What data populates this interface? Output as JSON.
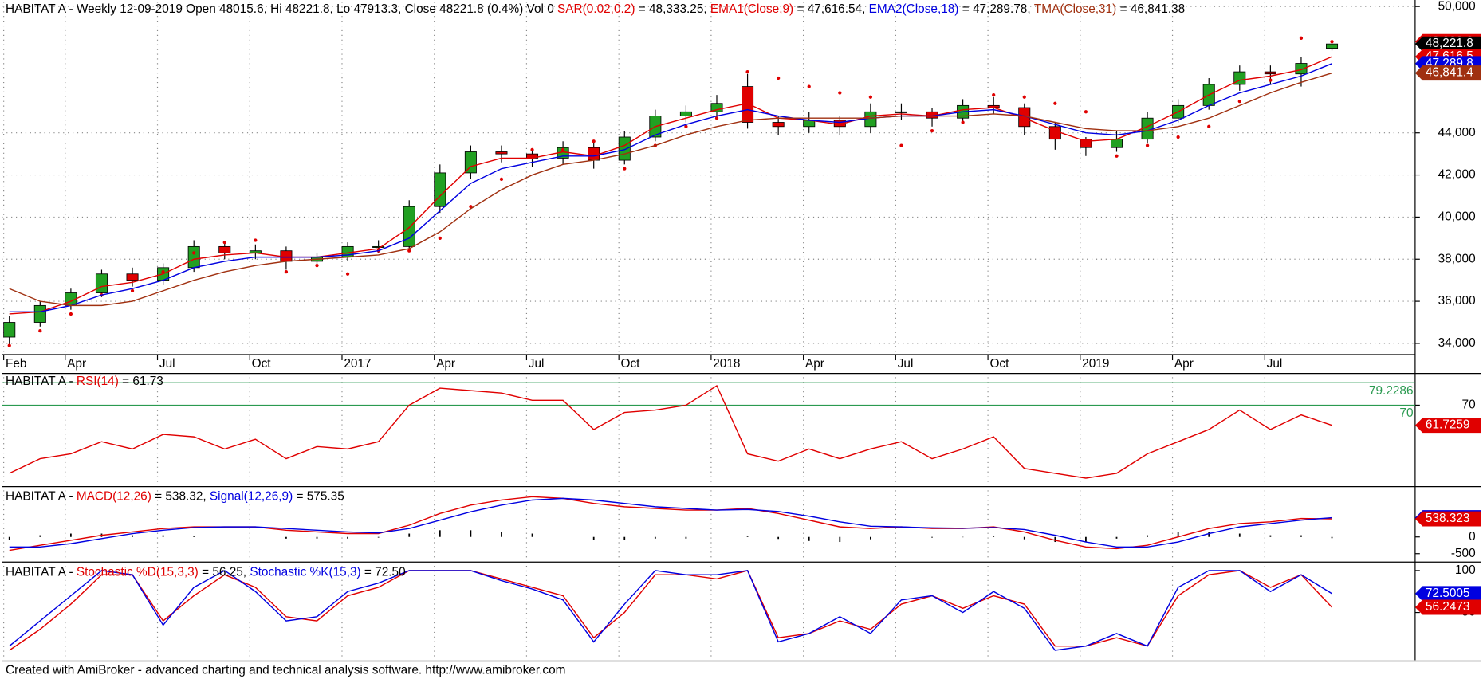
{
  "chart_data": [
    {
      "type": "candlestick",
      "title_parts": [
        {
          "text": "HABITAT A - Weekly 12-09-2019 Open 48015.6, Hi 48221.8, Lo 47913.3, Close 48221.8 (0.4%) Vol 0 ",
          "color": "#000000"
        },
        {
          "text": "SAR(0.02,0.2)",
          "color": "#e00000"
        },
        {
          "text": " = 48,333.25, ",
          "color": "#000000"
        },
        {
          "text": "EMA1(Close,9)",
          "color": "#e00000"
        },
        {
          "text": " = 47,616.54, ",
          "color": "#000000"
        },
        {
          "text": "EMA2(Close,18)",
          "color": "#0000e0"
        },
        {
          "text": " = 47,289.78, ",
          "color": "#000000"
        },
        {
          "text": "TMA(Close,31)",
          "color": "#a03010"
        },
        {
          "text": " = 46,841.38",
          "color": "#000000"
        }
      ],
      "categories": [
        "Feb",
        null,
        "Apr",
        null,
        null,
        "Jul",
        null,
        null,
        "Oct",
        null,
        null,
        "2017",
        null,
        null,
        "Apr",
        null,
        null,
        "Jul",
        null,
        null,
        "Oct",
        null,
        null,
        "2018",
        null,
        null,
        "Apr",
        null,
        null,
        "Jul",
        null,
        null,
        "Oct",
        null,
        null,
        "2019",
        null,
        null,
        "Apr",
        null,
        null,
        "Jul",
        null,
        null
      ],
      "open": [
        34300,
        35000,
        35800,
        36400,
        37300,
        37000,
        37600,
        38600,
        38300,
        38400,
        37900,
        38100,
        38600,
        38600,
        40500,
        42100,
        43100,
        43000,
        42800,
        43300,
        42700,
        43800,
        44800,
        45000,
        46200,
        44500,
        44300,
        44600,
        44300,
        45000,
        45000,
        44700,
        45300,
        45200,
        44300,
        43700,
        43300,
        43700,
        44700,
        45300,
        46300,
        46900,
        46800,
        48015.6
      ],
      "high": [
        35300,
        36000,
        36600,
        37500,
        37600,
        37800,
        38900,
        38800,
        38700,
        38600,
        38300,
        38800,
        38900,
        40800,
        42500,
        43400,
        43400,
        43200,
        43600,
        43500,
        44100,
        45100,
        45300,
        45800,
        46800,
        44800,
        45000,
        44800,
        45400,
        45400,
        45200,
        45600,
        45700,
        45400,
        44500,
        43800,
        44100,
        45000,
        45600,
        46600,
        47200,
        47200,
        47600,
        48221.8
      ],
      "low": [
        33900,
        34800,
        35600,
        36200,
        36700,
        36800,
        37400,
        38000,
        38000,
        37500,
        37700,
        37900,
        38300,
        38400,
        40200,
        41800,
        42600,
        42400,
        42500,
        42300,
        42500,
        43600,
        44500,
        44800,
        44200,
        43900,
        44000,
        43900,
        44000,
        44600,
        44300,
        44500,
        44900,
        43900,
        43200,
        42900,
        43100,
        43500,
        44500,
        45100,
        46000,
        46300,
        46200,
        47913.3
      ],
      "close": [
        35000,
        35800,
        36400,
        37300,
        37000,
        37600,
        38600,
        38300,
        38400,
        37900,
        38100,
        38600,
        38600,
        40500,
        42100,
        43100,
        43000,
        42800,
        43300,
        42700,
        43800,
        44800,
        45000,
        45400,
        44500,
        44300,
        44600,
        44300,
        45000,
        45000,
        44700,
        45300,
        45200,
        44300,
        43700,
        43300,
        43700,
        44700,
        45300,
        46300,
        46900,
        46800,
        47300,
        48221.8
      ],
      "up_color": "#22a022",
      "down_color": "#e00000",
      "series": [
        {
          "style": "dots",
          "color": "#e00000",
          "values": [
            33900,
            34600,
            35400,
            36300,
            36500,
            37400,
            38300,
            38800,
            38900,
            37400,
            37700,
            37300,
            38400,
            38400,
            39000,
            40500,
            41800,
            43200,
            43200,
            43600,
            42300,
            43400,
            44300,
            44700,
            46900,
            46600,
            46200,
            45900,
            45700,
            43400,
            44100,
            44500,
            45800,
            45700,
            45400,
            45000,
            42900,
            43400,
            43800,
            44300,
            45500,
            46500,
            48500,
            48333.25
          ]
        },
        {
          "style": "line",
          "color": "#e00000",
          "values": [
            35400,
            35500,
            36000,
            36700,
            36900,
            37300,
            38000,
            38200,
            38300,
            38100,
            38100,
            38300,
            38500,
            39500,
            41000,
            42400,
            42800,
            42800,
            43100,
            42900,
            43400,
            44300,
            44700,
            45100,
            45400,
            44700,
            44600,
            44400,
            44800,
            44900,
            44800,
            45100,
            45200,
            44700,
            44100,
            43600,
            43700,
            44300,
            45000,
            45800,
            46500,
            46700,
            47000,
            47616.54
          ]
        },
        {
          "style": "line",
          "color": "#0000e0",
          "values": [
            35500,
            35500,
            35800,
            36300,
            36600,
            37000,
            37600,
            37900,
            38100,
            38100,
            38100,
            38200,
            38400,
            39000,
            40300,
            41600,
            42300,
            42600,
            42900,
            42900,
            43200,
            43900,
            44400,
            44800,
            45100,
            44800,
            44600,
            44500,
            44700,
            44800,
            44800,
            45000,
            45100,
            44800,
            44400,
            44000,
            43900,
            44100,
            44600,
            45300,
            45900,
            46300,
            46700,
            47289.78
          ]
        },
        {
          "style": "line",
          "color": "#a03010",
          "values": [
            36600,
            36000,
            35800,
            35800,
            36000,
            36500,
            37000,
            37400,
            37700,
            37900,
            38000,
            38100,
            38200,
            38500,
            39300,
            40400,
            41300,
            42000,
            42500,
            42700,
            43000,
            43400,
            43900,
            44300,
            44600,
            44700,
            44700,
            44700,
            44700,
            44800,
            44800,
            44800,
            44900,
            44800,
            44500,
            44200,
            44100,
            44100,
            44300,
            44700,
            45300,
            45900,
            46400,
            46841.38
          ]
        }
      ],
      "ylim": [
        33560,
        50220
      ],
      "yticks": [
        {
          "value": 34000,
          "label": "34,000"
        },
        {
          "value": 36000,
          "label": "36,000"
        },
        {
          "value": 38000,
          "label": "38,000"
        },
        {
          "value": 40000,
          "label": "40,000"
        },
        {
          "value": 42000,
          "label": "42,000"
        },
        {
          "value": 44000,
          "label": "44,000"
        },
        {
          "value": 50000,
          "label": "50,000"
        }
      ],
      "grid": true,
      "badges": [
        {
          "value": 48333.3,
          "label": "48,333.3",
          "color": "#e00000"
        },
        {
          "value": 48221.8,
          "label": "48,221.8",
          "color": "#000000"
        },
        {
          "value": 47616.5,
          "label": "47,616.5",
          "color": "#e00000"
        },
        {
          "value": 47289.8,
          "label": "47,289.8",
          "color": "#0000e0"
        },
        {
          "value": 46841.4,
          "label": "46,841.4",
          "color": "#a03010"
        }
      ]
    },
    {
      "type": "line",
      "title_parts": [
        {
          "text": "HABITAT A - ",
          "color": "#000000"
        },
        {
          "text": "RSI(14)",
          "color": "#e00000"
        },
        {
          "text": " = 61.73",
          "color": "#000000"
        }
      ],
      "series": [
        {
          "style": "line",
          "color": "#e00000",
          "values": [
            42,
            48,
            50,
            55,
            52,
            58,
            57,
            52,
            56,
            48,
            53,
            52,
            55,
            70,
            77,
            76,
            75,
            72,
            72,
            60,
            67,
            68,
            70,
            78,
            50,
            47,
            52,
            48,
            52,
            55,
            48,
            52,
            57,
            44,
            42,
            40,
            42,
            50,
            55,
            60,
            68,
            60,
            66,
            61.7259
          ]
        }
      ],
      "levels": [
        79.2286,
        70
      ],
      "level_color": "#2a9a50",
      "ylim": [
        37.3,
        81.5
      ],
      "yticks": [
        70
      ],
      "badges": [
        {
          "value": 61.7259,
          "label": "61.7259",
          "color": "#e00000"
        }
      ]
    },
    {
      "type": "line",
      "title_parts": [
        {
          "text": "HABITAT A - ",
          "color": "#000000"
        },
        {
          "text": "MACD(12,26)",
          "color": "#e00000"
        },
        {
          "text": " = 538.32, ",
          "color": "#000000"
        },
        {
          "text": "Signal(12,26,9)",
          "color": "#0000e0"
        },
        {
          "text": " = 575.35",
          "color": "#000000"
        }
      ],
      "series": [
        {
          "style": "line",
          "color": "#e00000",
          "values": [
            -400,
            -250,
            -100,
            50,
            150,
            250,
            300,
            300,
            300,
            200,
            150,
            100,
            100,
            350,
            700,
            950,
            1100,
            1200,
            1150,
            1000,
            900,
            850,
            800,
            800,
            850,
            700,
            500,
            300,
            250,
            300,
            250,
            250,
            300,
            150,
            -100,
            -300,
            -350,
            -250,
            0,
            250,
            400,
            450,
            550,
            538.32
          ]
        },
        {
          "style": "line",
          "color": "#0000e0",
          "values": [
            -300,
            -300,
            -200,
            -50,
            100,
            200,
            280,
            300,
            300,
            250,
            200,
            150,
            120,
            250,
            500,
            750,
            950,
            1100,
            1150,
            1100,
            1000,
            900,
            850,
            800,
            820,
            760,
            620,
            450,
            320,
            300,
            270,
            260,
            280,
            220,
            50,
            -150,
            -300,
            -300,
            -150,
            100,
            300,
            400,
            500,
            575.35
          ]
        }
      ],
      "histogram": {
        "color": "#000000",
        "values": [
          -100,
          50,
          100,
          100,
          50,
          50,
          20,
          0,
          0,
          -50,
          -50,
          -50,
          -20,
          100,
          200,
          200,
          150,
          100,
          0,
          -100,
          -100,
          -50,
          -50,
          0,
          30,
          -60,
          -120,
          -150,
          -70,
          0,
          -20,
          -10,
          20,
          -70,
          -150,
          -150,
          -50,
          50,
          150,
          150,
          100,
          50,
          50,
          -37
        ]
      },
      "ylim": [
        -694,
        1389
      ],
      "yticks": [
        -500,
        0
      ],
      "badges": [
        {
          "value": 575.349,
          "label": "575.349",
          "color": "#0000e0"
        },
        {
          "value": 538.323,
          "label": "538.323",
          "color": "#e00000"
        }
      ]
    },
    {
      "type": "line",
      "title_parts": [
        {
          "text": "HABITAT A - ",
          "color": "#000000"
        },
        {
          "text": "Stochastic %D(15,3,3)",
          "color": "#e00000"
        },
        {
          "text": " = 56.25, ",
          "color": "#000000"
        },
        {
          "text": "Stochastic %K(15,3)",
          "color": "#0000e0"
        },
        {
          "text": " = 72.50",
          "color": "#000000"
        }
      ],
      "series": [
        {
          "style": "line",
          "color": "#e00000",
          "values": [
            5,
            30,
            60,
            95,
            95,
            40,
            70,
            95,
            80,
            45,
            40,
            70,
            80,
            100,
            100,
            100,
            90,
            80,
            70,
            20,
            50,
            95,
            95,
            90,
            100,
            20,
            25,
            40,
            30,
            60,
            70,
            55,
            70,
            60,
            10,
            10,
            20,
            10,
            70,
            95,
            100,
            80,
            95,
            56.25
          ]
        },
        {
          "style": "line",
          "color": "#0000e0",
          "values": [
            10,
            40,
            70,
            100,
            95,
            35,
            80,
            100,
            75,
            40,
            45,
            75,
            85,
            100,
            100,
            100,
            88,
            78,
            65,
            15,
            60,
            100,
            95,
            95,
            100,
            15,
            25,
            45,
            25,
            65,
            70,
            50,
            75,
            55,
            5,
            10,
            25,
            10,
            80,
            100,
            100,
            75,
            95,
            72.5
          ]
        }
      ],
      "ylim": [
        -5.6,
        105.6
      ],
      "yticks": [
        50,
        100
      ],
      "badges": [
        {
          "value": 72.5005,
          "label": "72.5005",
          "color": "#0000e0"
        },
        {
          "value": 56.2473,
          "label": "56.2473",
          "color": "#e00000"
        }
      ]
    }
  ],
  "footer": "Created with AmiBroker - advanced charting and technical analysis software. http://www.amibroker.com"
}
